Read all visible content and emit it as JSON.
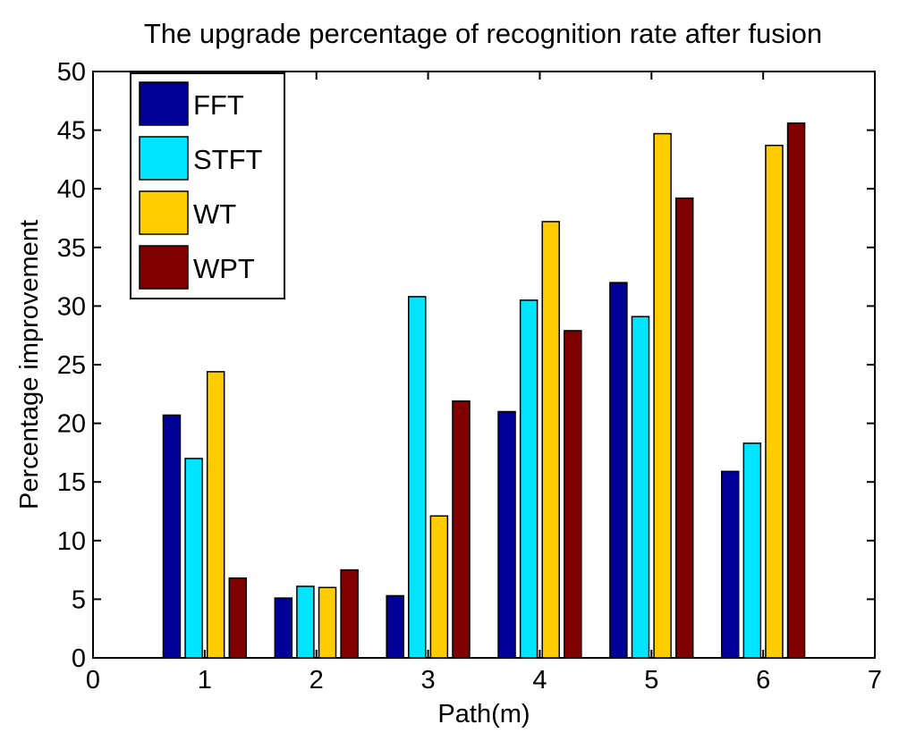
{
  "chart_data": {
    "type": "bar",
    "title": "The upgrade percentage of recognition rate after fusion",
    "xlabel": "Path(m)",
    "ylabel": "Percentage improvement",
    "xlim": [
      0,
      7
    ],
    "ylim": [
      0,
      50
    ],
    "xticks": [
      0,
      1,
      2,
      3,
      4,
      5,
      6,
      7
    ],
    "yticks": [
      0,
      5,
      10,
      15,
      20,
      25,
      30,
      35,
      40,
      45,
      50
    ],
    "categories": [
      1,
      2,
      3,
      4,
      5,
      6
    ],
    "series": [
      {
        "name": "FFT",
        "color": "#000099",
        "values": [
          20.7,
          5.1,
          5.3,
          21.0,
          32.0,
          15.9
        ]
      },
      {
        "name": "STFT",
        "color": "#00E5FF",
        "values": [
          17.0,
          6.1,
          30.8,
          30.5,
          29.1,
          18.3
        ]
      },
      {
        "name": "WT",
        "color": "#FFCC00",
        "values": [
          24.4,
          6.0,
          12.1,
          37.2,
          44.7,
          43.7
        ]
      },
      {
        "name": "WPT",
        "color": "#800000",
        "values": [
          6.8,
          7.5,
          21.9,
          27.9,
          39.2,
          45.6
        ]
      }
    ],
    "legend_position": "top-left",
    "grid": false
  }
}
